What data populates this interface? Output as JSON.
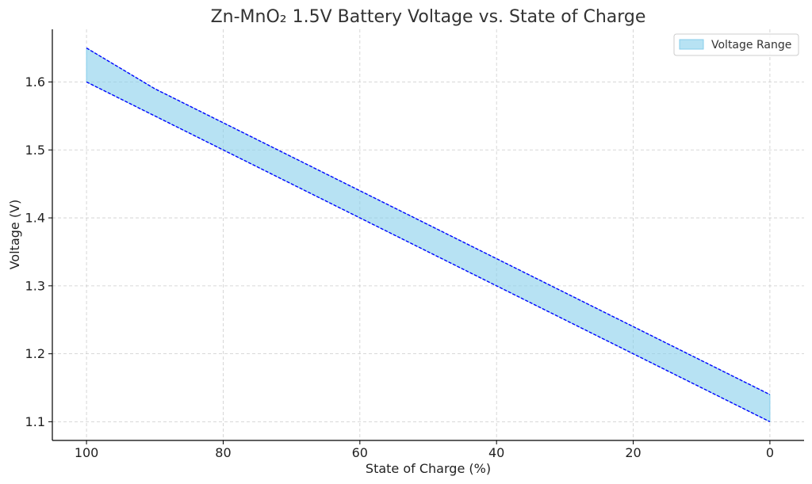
{
  "chart_data": {
    "type": "area",
    "title": "Zn-MnO₂ 1.5V Battery Voltage vs. State of Charge",
    "xlabel": "State of Charge (%)",
    "ylabel": "Voltage (V)",
    "x_inverted": true,
    "xlim": [
      105,
      -5
    ],
    "ylim": [
      1.0725,
      1.6775
    ],
    "x_ticks": [
      100,
      80,
      60,
      40,
      20,
      0
    ],
    "y_ticks": [
      1.1,
      1.2,
      1.3,
      1.4,
      1.5,
      1.6
    ],
    "grid": true,
    "legend_position": "top-right",
    "x": [
      100,
      90,
      80,
      70,
      60,
      50,
      40,
      30,
      20,
      10,
      0
    ],
    "series": [
      {
        "role": "upper",
        "values": [
          1.65,
          1.59,
          1.54,
          1.49,
          1.44,
          1.39,
          1.34,
          1.29,
          1.24,
          1.19,
          1.14
        ]
      },
      {
        "role": "lower",
        "values": [
          1.6,
          1.55,
          1.5,
          1.45,
          1.4,
          1.35,
          1.3,
          1.25,
          1.2,
          1.15,
          1.1
        ]
      }
    ],
    "band_name": "Voltage Range",
    "colors": {
      "band_fill": "#87ceeb",
      "line": "#0000ff",
      "grid": "#cccccc",
      "axis": "#000000"
    }
  }
}
